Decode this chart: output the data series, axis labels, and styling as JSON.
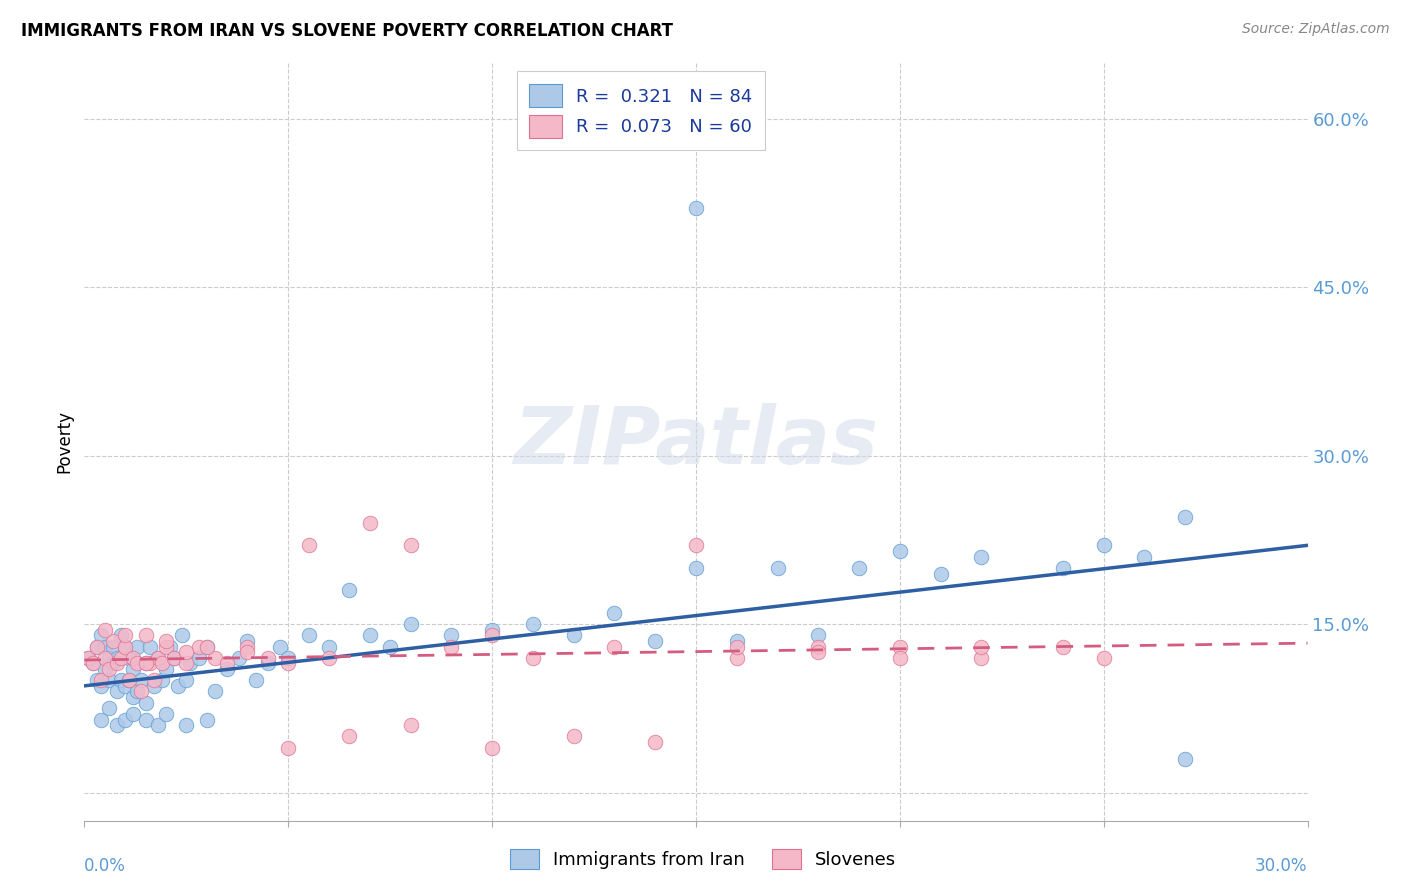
{
  "title": "IMMIGRANTS FROM IRAN VS SLOVENE POVERTY CORRELATION CHART",
  "source": "Source: ZipAtlas.com",
  "ylabel": "Poverty",
  "xlim": [
    0.0,
    0.3
  ],
  "ylim": [
    -0.025,
    0.65
  ],
  "ytick_vals": [
    0.0,
    0.15,
    0.3,
    0.45,
    0.6
  ],
  "ytick_labels": [
    "",
    "15.0%",
    "30.0%",
    "45.0%",
    "60.0%"
  ],
  "xtick_vals": [
    0.0,
    0.05,
    0.1,
    0.15,
    0.2,
    0.25,
    0.3
  ],
  "legend_line1": "R =  0.321   N = 84",
  "legend_line2": "R =  0.073   N = 60",
  "color_blue_fill": "#aec9e8",
  "color_blue_edge": "#5b9bd5",
  "color_pink_fill": "#f4b8c8",
  "color_pink_edge": "#e07090",
  "line_blue_color": "#2e5fa3",
  "line_pink_color": "#d45c80",
  "tick_color": "#5b9bd5",
  "iran_slope": 0.417,
  "iran_intercept": 0.095,
  "slovene_slope": 0.05,
  "slovene_intercept": 0.118,
  "iran_x": [
    0.001,
    0.002,
    0.003,
    0.003,
    0.004,
    0.004,
    0.005,
    0.005,
    0.006,
    0.006,
    0.007,
    0.007,
    0.008,
    0.008,
    0.009,
    0.009,
    0.01,
    0.01,
    0.011,
    0.011,
    0.012,
    0.012,
    0.013,
    0.013,
    0.014,
    0.015,
    0.015,
    0.016,
    0.017,
    0.018,
    0.019,
    0.02,
    0.021,
    0.022,
    0.023,
    0.024,
    0.025,
    0.026,
    0.028,
    0.03,
    0.032,
    0.035,
    0.038,
    0.04,
    0.042,
    0.045,
    0.048,
    0.05,
    0.055,
    0.06,
    0.065,
    0.07,
    0.075,
    0.08,
    0.09,
    0.1,
    0.11,
    0.12,
    0.13,
    0.14,
    0.15,
    0.16,
    0.17,
    0.18,
    0.19,
    0.2,
    0.21,
    0.22,
    0.24,
    0.25,
    0.26,
    0.27,
    0.004,
    0.006,
    0.008,
    0.01,
    0.012,
    0.015,
    0.018,
    0.02,
    0.025,
    0.03,
    0.15,
    0.27
  ],
  "iran_y": [
    0.12,
    0.115,
    0.1,
    0.13,
    0.095,
    0.14,
    0.11,
    0.13,
    0.1,
    0.12,
    0.115,
    0.13,
    0.09,
    0.12,
    0.1,
    0.14,
    0.095,
    0.13,
    0.1,
    0.12,
    0.085,
    0.11,
    0.09,
    0.13,
    0.1,
    0.115,
    0.08,
    0.13,
    0.095,
    0.12,
    0.1,
    0.11,
    0.13,
    0.12,
    0.095,
    0.14,
    0.1,
    0.115,
    0.12,
    0.13,
    0.09,
    0.11,
    0.12,
    0.135,
    0.1,
    0.115,
    0.13,
    0.12,
    0.14,
    0.13,
    0.18,
    0.14,
    0.13,
    0.15,
    0.14,
    0.145,
    0.15,
    0.14,
    0.16,
    0.135,
    0.2,
    0.135,
    0.2,
    0.14,
    0.2,
    0.215,
    0.195,
    0.21,
    0.2,
    0.22,
    0.21,
    0.03,
    0.065,
    0.075,
    0.06,
    0.065,
    0.07,
    0.065,
    0.06,
    0.07,
    0.06,
    0.065,
    0.52,
    0.245
  ],
  "slovene_x": [
    0.001,
    0.002,
    0.003,
    0.004,
    0.005,
    0.006,
    0.007,
    0.008,
    0.009,
    0.01,
    0.011,
    0.012,
    0.013,
    0.014,
    0.015,
    0.016,
    0.017,
    0.018,
    0.019,
    0.02,
    0.022,
    0.025,
    0.028,
    0.032,
    0.035,
    0.04,
    0.045,
    0.05,
    0.055,
    0.06,
    0.07,
    0.08,
    0.09,
    0.1,
    0.11,
    0.13,
    0.15,
    0.16,
    0.18,
    0.2,
    0.22,
    0.24,
    0.25,
    0.005,
    0.01,
    0.015,
    0.02,
    0.025,
    0.03,
    0.04,
    0.05,
    0.065,
    0.08,
    0.1,
    0.12,
    0.14,
    0.16,
    0.18,
    0.2,
    0.22
  ],
  "slovene_y": [
    0.12,
    0.115,
    0.13,
    0.1,
    0.12,
    0.11,
    0.135,
    0.115,
    0.12,
    0.13,
    0.1,
    0.12,
    0.115,
    0.09,
    0.14,
    0.115,
    0.1,
    0.12,
    0.115,
    0.13,
    0.12,
    0.115,
    0.13,
    0.12,
    0.115,
    0.13,
    0.12,
    0.115,
    0.22,
    0.12,
    0.24,
    0.22,
    0.13,
    0.14,
    0.12,
    0.13,
    0.22,
    0.12,
    0.13,
    0.13,
    0.12,
    0.13,
    0.12,
    0.145,
    0.14,
    0.115,
    0.135,
    0.125,
    0.13,
    0.125,
    0.04,
    0.05,
    0.06,
    0.04,
    0.05,
    0.045,
    0.13,
    0.125,
    0.12,
    0.13
  ]
}
